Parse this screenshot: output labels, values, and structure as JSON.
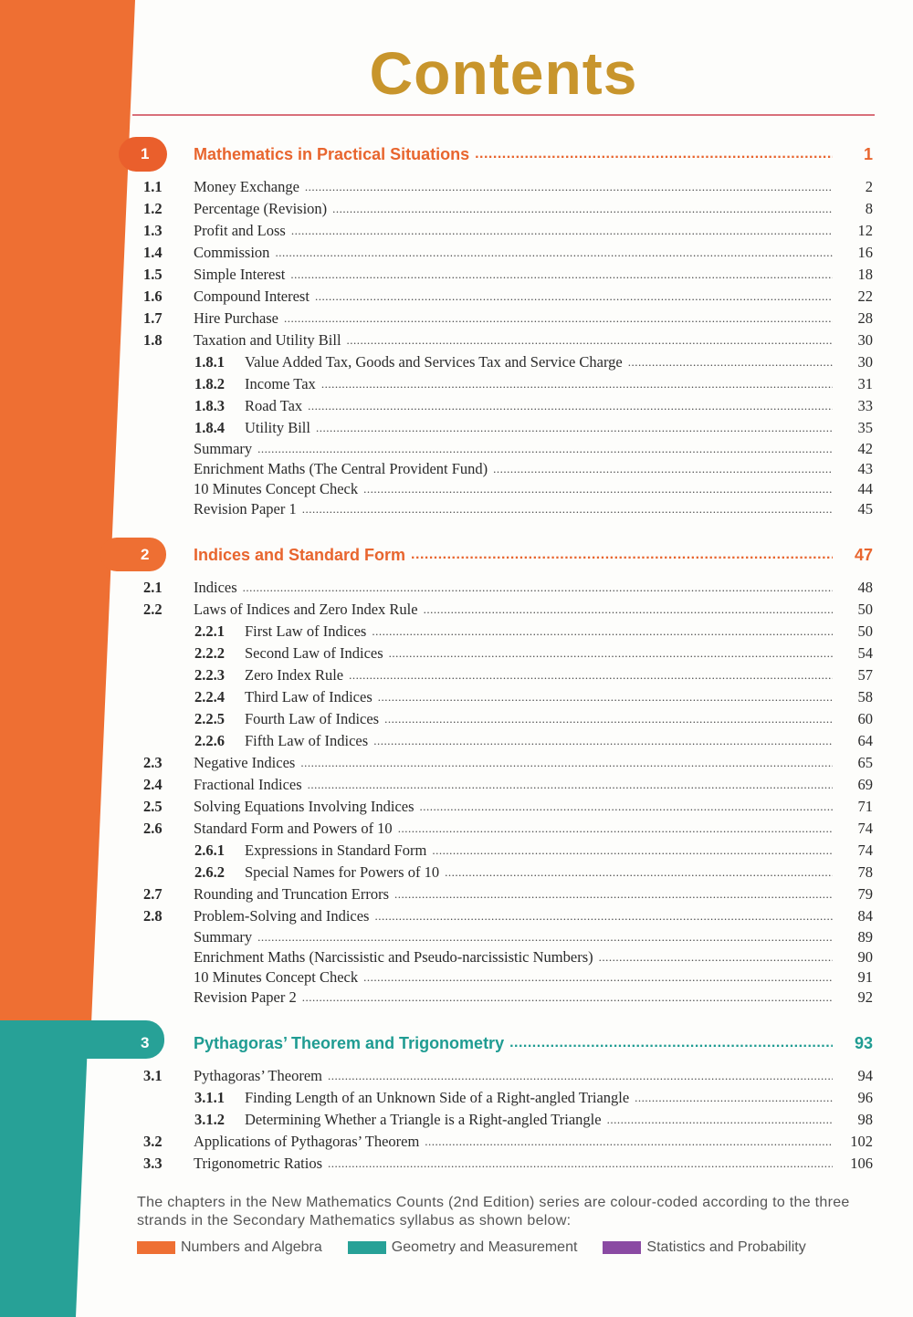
{
  "title": "Contents",
  "colors": {
    "numbers_algebra": "#ee6f33",
    "geometry": "#27a197",
    "statistics": "#8a4aa3",
    "title": "#c8952c",
    "rule": "#d9707a"
  },
  "chapters": [
    {
      "number": "1",
      "title": "Mathematics in Practical Situations",
      "page": "1",
      "color": "#e8652e",
      "items": [
        {
          "type": "section",
          "num": "1.1",
          "title": "Money Exchange",
          "page": "2"
        },
        {
          "type": "section",
          "num": "1.2",
          "title": "Percentage (Revision)",
          "page": "8"
        },
        {
          "type": "section",
          "num": "1.3",
          "title": "Profit and Loss",
          "page": "12"
        },
        {
          "type": "section",
          "num": "1.4",
          "title": "Commission",
          "page": "16"
        },
        {
          "type": "section",
          "num": "1.5",
          "title": "Simple Interest",
          "page": "18"
        },
        {
          "type": "section",
          "num": "1.6",
          "title": "Compound Interest",
          "page": "22"
        },
        {
          "type": "section",
          "num": "1.7",
          "title": "Hire Purchase",
          "page": "28"
        },
        {
          "type": "section",
          "num": "1.8",
          "title": "Taxation and Utility Bill",
          "page": "30"
        },
        {
          "type": "sub",
          "num": "1.8.1",
          "title": "Value Added Tax, Goods and Services Tax and Service Charge",
          "page": "30"
        },
        {
          "type": "sub",
          "num": "1.8.2",
          "title": "Income Tax",
          "page": "31"
        },
        {
          "type": "sub",
          "num": "1.8.3",
          "title": "Road Tax",
          "page": "33"
        },
        {
          "type": "sub",
          "num": "1.8.4",
          "title": "Utility Bill",
          "page": "35"
        },
        {
          "type": "extra",
          "title": "Summary",
          "page": "42"
        },
        {
          "type": "extra",
          "title": "Enrichment Maths (The Central Provident Fund)",
          "page": "43"
        },
        {
          "type": "extra",
          "title": "10 Minutes Concept Check",
          "page": "44"
        },
        {
          "type": "extra",
          "title": "Revision Paper 1",
          "page": "45"
        }
      ]
    },
    {
      "number": "2",
      "title": "Indices and Standard Form",
      "page": "47",
      "color": "#e8652e",
      "items": [
        {
          "type": "section",
          "num": "2.1",
          "title": "Indices",
          "page": "48"
        },
        {
          "type": "section",
          "num": "2.2",
          "title": "Laws of Indices and Zero Index Rule",
          "page": "50"
        },
        {
          "type": "sub",
          "num": "2.2.1",
          "title": "First Law of Indices",
          "page": "50"
        },
        {
          "type": "sub",
          "num": "2.2.2",
          "title": "Second Law of Indices",
          "page": "54"
        },
        {
          "type": "sub",
          "num": "2.2.3",
          "title": "Zero Index Rule",
          "page": "57"
        },
        {
          "type": "sub",
          "num": "2.2.4",
          "title": "Third Law of Indices",
          "page": "58"
        },
        {
          "type": "sub",
          "num": "2.2.5",
          "title": "Fourth Law of Indices",
          "page": "60"
        },
        {
          "type": "sub",
          "num": "2.2.6",
          "title": "Fifth Law of Indices",
          "page": "64"
        },
        {
          "type": "section",
          "num": "2.3",
          "title": "Negative Indices",
          "page": "65"
        },
        {
          "type": "section",
          "num": "2.4",
          "title": "Fractional Indices",
          "page": "69"
        },
        {
          "type": "section",
          "num": "2.5",
          "title": "Solving Equations Involving Indices",
          "page": "71"
        },
        {
          "type": "section",
          "num": "2.6",
          "title": "Standard Form and Powers of 10",
          "page": "74"
        },
        {
          "type": "sub",
          "num": "2.6.1",
          "title": "Expressions in Standard Form",
          "page": "74"
        },
        {
          "type": "sub",
          "num": "2.6.2",
          "title": "Special Names for Powers of 10",
          "page": "78"
        },
        {
          "type": "section",
          "num": "2.7",
          "title": "Rounding and Truncation Errors",
          "page": "79"
        },
        {
          "type": "section",
          "num": "2.8",
          "title": "Problem-Solving and Indices",
          "page": "84"
        },
        {
          "type": "extra",
          "title": "Summary",
          "page": "89"
        },
        {
          "type": "extra",
          "title": "Enrichment Maths (Narcissistic and Pseudo-narcissistic Numbers)",
          "page": "90"
        },
        {
          "type": "extra",
          "title": "10 Minutes Concept Check",
          "page": "91"
        },
        {
          "type": "extra",
          "title": "Revision Paper 2",
          "page": "92"
        }
      ]
    },
    {
      "number": "3",
      "title": "Pythagoras’ Theorem and Trigonometry",
      "page": "93",
      "color": "#1f9c92",
      "items": [
        {
          "type": "section",
          "num": "3.1",
          "title": "Pythagoras’ Theorem",
          "page": "94"
        },
        {
          "type": "sub",
          "num": "3.1.1",
          "title": "Finding Length of an Unknown Side of a Right-angled Triangle",
          "page": "96"
        },
        {
          "type": "sub",
          "num": "3.1.2",
          "title": "Determining Whether a Triangle is a Right-angled Triangle",
          "page": "98"
        },
        {
          "type": "section",
          "num": "3.2",
          "title": "Applications of Pythagoras’ Theorem",
          "page": "102"
        },
        {
          "type": "section",
          "num": "3.3",
          "title": "Trigonometric Ratios",
          "page": "106"
        }
      ]
    }
  ],
  "footer": {
    "note": "The chapters in the New Mathematics Counts (2nd Edition) series are colour-coded according to the three strands in the Secondary Mathematics syllabus as shown below:",
    "legend": [
      {
        "label": "Numbers and Algebra",
        "color": "#ee6f33"
      },
      {
        "label": "Geometry and Measurement",
        "color": "#27a197"
      },
      {
        "label": "Statistics and Probability",
        "color": "#8a4aa3"
      }
    ]
  }
}
